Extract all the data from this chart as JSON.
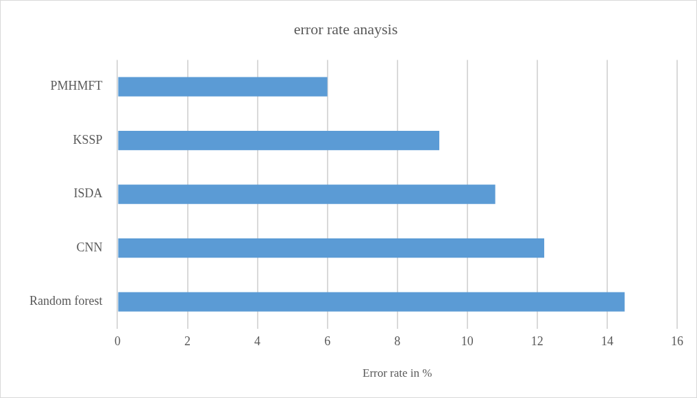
{
  "chart_data": {
    "type": "bar",
    "orientation": "horizontal",
    "title": "error rate anaysis",
    "xlabel": "Error rate in %",
    "categories": [
      "PMHMFT",
      "KSSP",
      "ISDA",
      "CNN",
      "Random forest"
    ],
    "values": [
      6,
      9.2,
      10.8,
      12.2,
      14.5
    ],
    "color": "#5b9bd5",
    "xlim": [
      0,
      16
    ],
    "xticks": [
      0,
      2,
      4,
      6,
      8,
      10,
      12,
      14,
      16
    ],
    "grid": "x",
    "legend": false
  }
}
